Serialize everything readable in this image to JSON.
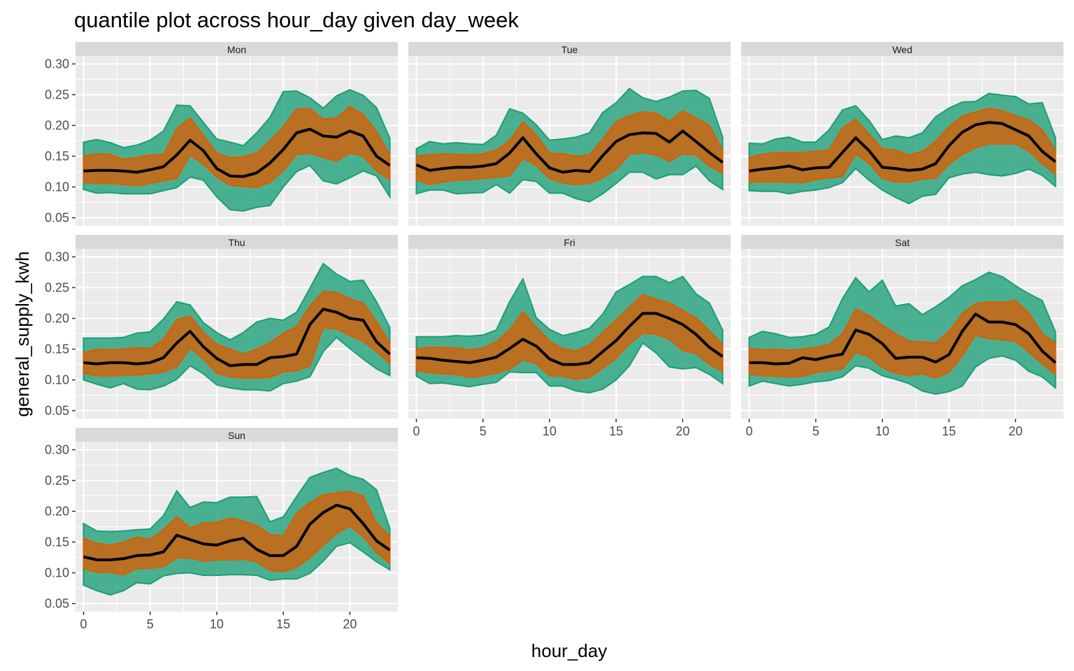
{
  "chart_data": {
    "type": "area",
    "title": "quantile plot across hour_day given day_week",
    "xlabel": "hour_day",
    "ylabel": "general_supply_kwh",
    "xlim": [
      0,
      23
    ],
    "ylim": [
      0.05,
      0.3
    ],
    "x_ticks": [
      0,
      5,
      10,
      15,
      20
    ],
    "y_ticks": [
      "0.05",
      "0.10",
      "0.15",
      "0.20",
      "0.25",
      "0.30"
    ],
    "grid": true,
    "legend": "none",
    "colors": {
      "outer_band": "#1b9e77",
      "inner_band": "#d95f02",
      "median_line": "#000000",
      "panel_background": "#ebebeb",
      "strip_background": "#d9d9d9",
      "grid": "#ffffff"
    },
    "x": [
      0,
      1,
      2,
      3,
      4,
      5,
      6,
      7,
      8,
      9,
      10,
      11,
      12,
      13,
      14,
      15,
      16,
      17,
      18,
      19,
      20,
      21,
      22,
      23
    ],
    "panels": [
      {
        "facet": "Mon",
        "outer_upper": [
          0.173,
          0.177,
          0.172,
          0.164,
          0.168,
          0.176,
          0.191,
          0.233,
          0.232,
          0.205,
          0.178,
          0.173,
          0.167,
          0.188,
          0.213,
          0.255,
          0.256,
          0.245,
          0.228,
          0.248,
          0.258,
          0.249,
          0.229,
          0.179
        ],
        "inner_upper": [
          0.15,
          0.154,
          0.153,
          0.145,
          0.148,
          0.152,
          0.153,
          0.195,
          0.212,
          0.184,
          0.155,
          0.148,
          0.149,
          0.155,
          0.175,
          0.198,
          0.227,
          0.227,
          0.21,
          0.212,
          0.231,
          0.218,
          0.19,
          0.152
        ],
        "median": [
          0.126,
          0.127,
          0.127,
          0.126,
          0.124,
          0.128,
          0.133,
          0.152,
          0.176,
          0.159,
          0.13,
          0.118,
          0.117,
          0.123,
          0.139,
          0.161,
          0.188,
          0.194,
          0.183,
          0.181,
          0.191,
          0.183,
          0.15,
          0.135
        ],
        "inner_lower": [
          0.108,
          0.106,
          0.106,
          0.104,
          0.102,
          0.106,
          0.11,
          0.114,
          0.152,
          0.137,
          0.116,
          0.103,
          0.101,
          0.099,
          0.108,
          0.126,
          0.153,
          0.155,
          0.148,
          0.142,
          0.155,
          0.15,
          0.126,
          0.112
        ],
        "outer_lower": [
          0.096,
          0.09,
          0.091,
          0.089,
          0.089,
          0.089,
          0.094,
          0.099,
          0.116,
          0.111,
          0.084,
          0.063,
          0.061,
          0.067,
          0.07,
          0.1,
          0.125,
          0.135,
          0.11,
          0.105,
          0.115,
          0.126,
          0.118,
          0.084
        ]
      },
      {
        "facet": "Tue",
        "outer_upper": [
          0.162,
          0.174,
          0.17,
          0.172,
          0.17,
          0.169,
          0.184,
          0.227,
          0.22,
          0.201,
          0.176,
          0.178,
          0.181,
          0.188,
          0.221,
          0.237,
          0.26,
          0.245,
          0.239,
          0.246,
          0.256,
          0.257,
          0.244,
          0.181
        ],
        "inner_upper": [
          0.15,
          0.152,
          0.154,
          0.153,
          0.152,
          0.154,
          0.16,
          0.175,
          0.206,
          0.185,
          0.155,
          0.154,
          0.15,
          0.152,
          0.178,
          0.206,
          0.216,
          0.222,
          0.22,
          0.207,
          0.224,
          0.212,
          0.2,
          0.16
        ],
        "median": [
          0.136,
          0.127,
          0.13,
          0.132,
          0.132,
          0.134,
          0.138,
          0.155,
          0.18,
          0.154,
          0.131,
          0.124,
          0.127,
          0.125,
          0.151,
          0.174,
          0.185,
          0.188,
          0.187,
          0.173,
          0.191,
          0.174,
          0.156,
          0.14
        ],
        "inner_lower": [
          0.112,
          0.104,
          0.108,
          0.111,
          0.112,
          0.114,
          0.116,
          0.118,
          0.146,
          0.135,
          0.114,
          0.107,
          0.104,
          0.106,
          0.115,
          0.129,
          0.153,
          0.156,
          0.152,
          0.142,
          0.154,
          0.152,
          0.134,
          0.123
        ],
        "outer_lower": [
          0.089,
          0.095,
          0.095,
          0.089,
          0.09,
          0.091,
          0.104,
          0.09,
          0.112,
          0.109,
          0.09,
          0.09,
          0.081,
          0.076,
          0.089,
          0.106,
          0.124,
          0.124,
          0.113,
          0.12,
          0.12,
          0.134,
          0.11,
          0.096
        ]
      },
      {
        "facet": "Wed",
        "outer_upper": [
          0.171,
          0.17,
          0.178,
          0.181,
          0.173,
          0.173,
          0.193,
          0.225,
          0.232,
          0.208,
          0.177,
          0.183,
          0.18,
          0.188,
          0.214,
          0.228,
          0.238,
          0.239,
          0.252,
          0.249,
          0.247,
          0.235,
          0.237,
          0.18
        ],
        "inner_upper": [
          0.148,
          0.153,
          0.156,
          0.156,
          0.156,
          0.158,
          0.16,
          0.196,
          0.21,
          0.186,
          0.162,
          0.16,
          0.152,
          0.158,
          0.174,
          0.198,
          0.215,
          0.222,
          0.228,
          0.224,
          0.216,
          0.209,
          0.193,
          0.159
        ],
        "median": [
          0.126,
          0.129,
          0.131,
          0.134,
          0.128,
          0.131,
          0.132,
          0.156,
          0.18,
          0.159,
          0.132,
          0.13,
          0.127,
          0.129,
          0.138,
          0.167,
          0.189,
          0.201,
          0.205,
          0.203,
          0.193,
          0.183,
          0.158,
          0.141
        ],
        "inner_lower": [
          0.108,
          0.108,
          0.108,
          0.108,
          0.107,
          0.112,
          0.115,
          0.117,
          0.154,
          0.138,
          0.114,
          0.108,
          0.108,
          0.113,
          0.114,
          0.137,
          0.153,
          0.164,
          0.17,
          0.17,
          0.17,
          0.158,
          0.138,
          0.121
        ],
        "outer_lower": [
          0.094,
          0.093,
          0.093,
          0.089,
          0.093,
          0.095,
          0.099,
          0.107,
          0.13,
          0.111,
          0.095,
          0.083,
          0.073,
          0.085,
          0.088,
          0.115,
          0.121,
          0.124,
          0.12,
          0.118,
          0.122,
          0.129,
          0.119,
          0.101
        ]
      },
      {
        "facet": "Thu",
        "outer_upper": [
          0.168,
          0.168,
          0.168,
          0.169,
          0.176,
          0.178,
          0.199,
          0.227,
          0.222,
          0.193,
          0.177,
          0.165,
          0.177,
          0.194,
          0.2,
          0.197,
          0.21,
          0.249,
          0.289,
          0.272,
          0.26,
          0.262,
          0.227,
          0.185
        ],
        "inner_upper": [
          0.144,
          0.15,
          0.149,
          0.15,
          0.152,
          0.151,
          0.166,
          0.198,
          0.204,
          0.177,
          0.158,
          0.15,
          0.142,
          0.15,
          0.16,
          0.176,
          0.186,
          0.22,
          0.244,
          0.242,
          0.232,
          0.225,
          0.195,
          0.16
        ],
        "median": [
          0.128,
          0.126,
          0.128,
          0.128,
          0.126,
          0.128,
          0.136,
          0.16,
          0.179,
          0.154,
          0.135,
          0.123,
          0.125,
          0.125,
          0.136,
          0.138,
          0.142,
          0.19,
          0.215,
          0.21,
          0.2,
          0.197,
          0.162,
          0.142
        ],
        "inner_lower": [
          0.111,
          0.107,
          0.106,
          0.108,
          0.108,
          0.11,
          0.113,
          0.121,
          0.152,
          0.134,
          0.111,
          0.105,
          0.103,
          0.103,
          0.104,
          0.113,
          0.115,
          0.123,
          0.185,
          0.183,
          0.172,
          0.163,
          0.146,
          0.127
        ],
        "outer_lower": [
          0.1,
          0.093,
          0.087,
          0.094,
          0.085,
          0.084,
          0.09,
          0.101,
          0.123,
          0.11,
          0.092,
          0.087,
          0.084,
          0.084,
          0.082,
          0.094,
          0.098,
          0.105,
          0.146,
          0.169,
          0.151,
          0.134,
          0.118,
          0.107
        ]
      },
      {
        "facet": "Fri",
        "outer_upper": [
          0.17,
          0.17,
          0.17,
          0.172,
          0.171,
          0.173,
          0.181,
          0.227,
          0.264,
          0.201,
          0.182,
          0.172,
          0.177,
          0.184,
          0.207,
          0.243,
          0.255,
          0.268,
          0.268,
          0.258,
          0.268,
          0.24,
          0.225,
          0.181
        ],
        "inner_upper": [
          0.15,
          0.153,
          0.153,
          0.152,
          0.149,
          0.152,
          0.162,
          0.181,
          0.211,
          0.186,
          0.163,
          0.151,
          0.147,
          0.157,
          0.177,
          0.198,
          0.218,
          0.239,
          0.231,
          0.225,
          0.213,
          0.201,
          0.18,
          0.157
        ],
        "median": [
          0.136,
          0.135,
          0.132,
          0.13,
          0.128,
          0.132,
          0.137,
          0.151,
          0.166,
          0.155,
          0.134,
          0.125,
          0.125,
          0.128,
          0.146,
          0.164,
          0.187,
          0.208,
          0.208,
          0.2,
          0.19,
          0.174,
          0.153,
          0.138
        ],
        "inner_lower": [
          0.115,
          0.112,
          0.11,
          0.109,
          0.104,
          0.107,
          0.111,
          0.117,
          0.133,
          0.126,
          0.107,
          0.106,
          0.101,
          0.104,
          0.119,
          0.135,
          0.159,
          0.176,
          0.174,
          0.166,
          0.148,
          0.143,
          0.125,
          0.114
        ],
        "outer_lower": [
          0.106,
          0.094,
          0.095,
          0.092,
          0.089,
          0.093,
          0.096,
          0.113,
          0.112,
          0.112,
          0.09,
          0.09,
          0.082,
          0.079,
          0.085,
          0.1,
          0.123,
          0.16,
          0.144,
          0.121,
          0.118,
          0.12,
          0.109,
          0.094
        ]
      },
      {
        "facet": "Sat",
        "outer_upper": [
          0.169,
          0.179,
          0.175,
          0.169,
          0.17,
          0.174,
          0.186,
          0.232,
          0.266,
          0.243,
          0.262,
          0.22,
          0.224,
          0.206,
          0.219,
          0.234,
          0.253,
          0.263,
          0.275,
          0.268,
          0.253,
          0.24,
          0.229,
          0.178
        ],
        "inner_upper": [
          0.151,
          0.149,
          0.15,
          0.148,
          0.15,
          0.153,
          0.157,
          0.175,
          0.215,
          0.205,
          0.189,
          0.175,
          0.163,
          0.162,
          0.16,
          0.179,
          0.208,
          0.224,
          0.227,
          0.226,
          0.229,
          0.209,
          0.175,
          0.16
        ],
        "median": [
          0.128,
          0.128,
          0.126,
          0.127,
          0.136,
          0.133,
          0.138,
          0.142,
          0.181,
          0.174,
          0.159,
          0.135,
          0.137,
          0.137,
          0.129,
          0.141,
          0.179,
          0.207,
          0.194,
          0.194,
          0.19,
          0.175,
          0.147,
          0.128
        ],
        "inner_lower": [
          0.11,
          0.107,
          0.106,
          0.105,
          0.106,
          0.112,
          0.115,
          0.118,
          0.145,
          0.137,
          0.12,
          0.111,
          0.107,
          0.11,
          0.103,
          0.112,
          0.139,
          0.173,
          0.167,
          0.165,
          0.163,
          0.145,
          0.126,
          0.109
        ],
        "outer_lower": [
          0.09,
          0.098,
          0.094,
          0.09,
          0.093,
          0.097,
          0.099,
          0.105,
          0.123,
          0.119,
          0.107,
          0.101,
          0.094,
          0.082,
          0.077,
          0.081,
          0.09,
          0.121,
          0.135,
          0.139,
          0.132,
          0.114,
          0.105,
          0.087
        ]
      },
      {
        "facet": "Sun",
        "outer_upper": [
          0.18,
          0.168,
          0.167,
          0.168,
          0.17,
          0.171,
          0.193,
          0.233,
          0.206,
          0.215,
          0.214,
          0.223,
          0.223,
          0.224,
          0.183,
          0.191,
          0.224,
          0.255,
          0.263,
          0.27,
          0.258,
          0.252,
          0.235,
          0.172
        ],
        "inner_upper": [
          0.156,
          0.148,
          0.145,
          0.15,
          0.158,
          0.154,
          0.17,
          0.191,
          0.173,
          0.181,
          0.182,
          0.189,
          0.184,
          0.177,
          0.162,
          0.16,
          0.197,
          0.214,
          0.227,
          0.23,
          0.232,
          0.225,
          0.181,
          0.16
        ],
        "median": [
          0.126,
          0.121,
          0.121,
          0.123,
          0.128,
          0.129,
          0.134,
          0.161,
          0.154,
          0.147,
          0.145,
          0.152,
          0.156,
          0.138,
          0.128,
          0.128,
          0.143,
          0.179,
          0.198,
          0.21,
          0.204,
          0.18,
          0.152,
          0.137
        ],
        "inner_lower": [
          0.107,
          0.101,
          0.101,
          0.097,
          0.107,
          0.107,
          0.11,
          0.124,
          0.124,
          0.119,
          0.121,
          0.121,
          0.122,
          0.118,
          0.104,
          0.102,
          0.109,
          0.124,
          0.145,
          0.164,
          0.176,
          0.159,
          0.133,
          0.115
        ],
        "outer_lower": [
          0.08,
          0.071,
          0.064,
          0.071,
          0.084,
          0.082,
          0.095,
          0.099,
          0.1,
          0.096,
          0.096,
          0.097,
          0.097,
          0.096,
          0.088,
          0.09,
          0.09,
          0.099,
          0.119,
          0.143,
          0.149,
          0.134,
          0.118,
          0.105
        ]
      }
    ]
  }
}
